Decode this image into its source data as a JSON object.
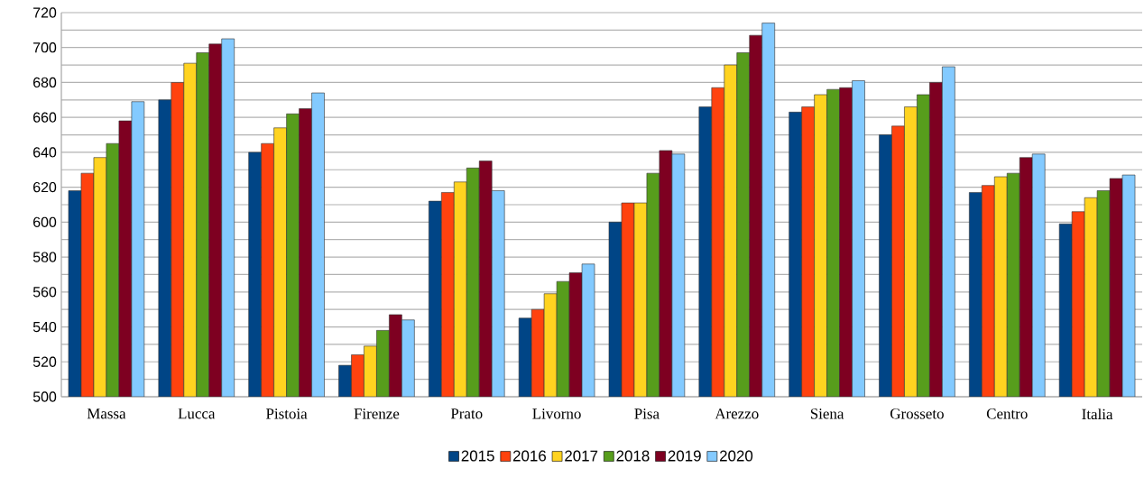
{
  "chart_data": {
    "type": "bar",
    "categories": [
      "Massa",
      "Lucca",
      "Pistoia",
      "Firenze",
      "Prato",
      "Livorno",
      "Pisa",
      "Arezzo",
      "Siena",
      "Grosseto",
      "Centro",
      "Italia"
    ],
    "series": [
      {
        "name": "2015",
        "color": "#004586",
        "values": [
          618,
          670,
          640,
          518,
          612,
          545,
          600,
          666,
          663,
          650,
          617,
          599
        ]
      },
      {
        "name": "2016",
        "color": "#ff420e",
        "values": [
          628,
          680,
          645,
          524,
          617,
          550,
          611,
          677,
          666,
          655,
          621,
          606
        ]
      },
      {
        "name": "2017",
        "color": "#ffd320",
        "values": [
          637,
          691,
          654,
          529,
          623,
          559,
          611,
          690,
          673,
          666,
          626,
          614
        ]
      },
      {
        "name": "2018",
        "color": "#579d1c",
        "values": [
          645,
          697,
          662,
          538,
          631,
          566,
          628,
          697,
          676,
          673,
          628,
          618
        ]
      },
      {
        "name": "2019",
        "color": "#7e0021",
        "values": [
          658,
          702,
          665,
          547,
          635,
          571,
          641,
          707,
          677,
          680,
          637,
          625
        ]
      },
      {
        "name": "2020",
        "color": "#83caff",
        "values": [
          669,
          705,
          674,
          544,
          618,
          576,
          639,
          714,
          681,
          689,
          639,
          627
        ]
      }
    ],
    "ylim": [
      500,
      720
    ],
    "yticks": [
      500,
      {
        "value": 510,
        "label": null
      },
      520,
      {
        "value": 530,
        "label": null
      },
      540,
      {
        "value": 550,
        "label": null
      },
      560,
      {
        "value": 570,
        "label": null
      },
      580,
      {
        "value": 590,
        "label": null
      },
      600,
      {
        "value": 610,
        "label": null
      },
      620,
      {
        "value": 630,
        "label": null
      },
      640,
      {
        "value": 650,
        "label": null
      },
      660,
      {
        "value": 670,
        "label": null
      },
      680,
      {
        "value": 690,
        "label": null
      },
      700,
      {
        "value": 710,
        "label": null
      },
      720
    ],
    "grid": "y",
    "legend": "bottom"
  }
}
